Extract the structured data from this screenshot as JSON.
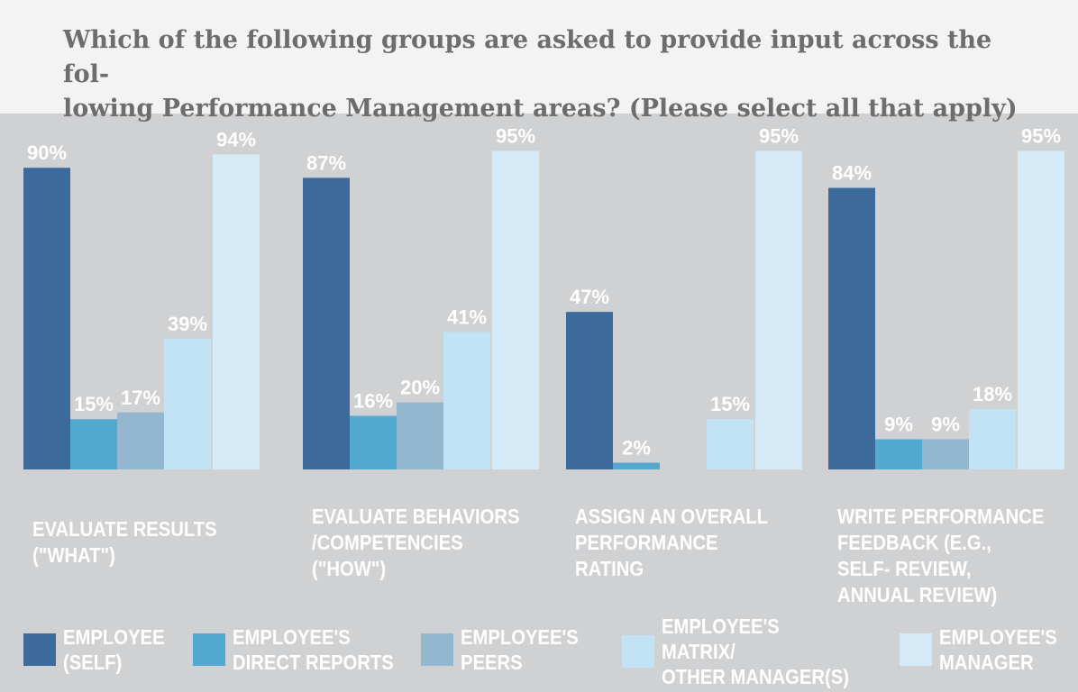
{
  "chart_data": {
    "type": "bar",
    "title": "Which of the following groups are asked to provide input across the fol-lowing Performance Management areas? (Please select all that apply)",
    "categories": [
      "EVALUATE RESULTS (\"WHAT\")",
      "EVALUATE BEHAVIORS /COMPETENCIES (\"HOW\")",
      "ASSIGN AN OVERALL PERFORMANCE RATING",
      "WRITE PERFORMANCE FEEDBACK (E.G., SELF- REVIEW, ANNUAL REVIEW)"
    ],
    "series": [
      {
        "name": "EMPLOYEE (SELF)",
        "color": "#3c6a9a",
        "values": [
          90,
          87,
          47,
          84
        ]
      },
      {
        "name": "EMPLOYEE'S DIRECT REPORTS",
        "color": "#53a9cf",
        "values": [
          15,
          16,
          2,
          9
        ]
      },
      {
        "name": "EMPLOYEE'S PEERS",
        "color": "#93b7ce",
        "values": [
          17,
          20,
          null,
          9
        ]
      },
      {
        "name": "EMPLOYEE'S MATRIX/ OTHER MANAGER(S)",
        "color": "#c2e3f6",
        "values": [
          39,
          41,
          15,
          18
        ]
      },
      {
        "name": "EMPLOYEE'S MANAGER",
        "color": "#d6ebf8",
        "values": [
          94,
          95,
          95,
          95
        ]
      }
    ],
    "value_suffix": "%",
    "legend": "bottom",
    "grid": false,
    "ylim": [
      0,
      100
    ]
  },
  "display": {
    "title": "Which of the following groups are asked to provide input across the fol-\nlowing Performance Management areas? (Please select all that apply)",
    "category_lines": [
      "EVALUATE RESULTS\n(\"WHAT\")",
      "EVALUATE BEHAVIORS\n/COMPETENCIES\n(\"HOW\")",
      "ASSIGN AN OVERALL\nPERFORMANCE\nRATING",
      "WRITE PERFORMANCE\nFEEDBACK (E.G.,\nSELF- REVIEW,\nANNUAL REVIEW)"
    ],
    "legend_lines": [
      "EMPLOYEE\n(SELF)",
      "EMPLOYEE'S\nDIRECT REPORTS",
      "EMPLOYEE'S\nPEERS",
      "EMPLOYEE'S\nMATRIX/\nOTHER MANAGER(S)",
      "EMPLOYEE'S\nMANAGER"
    ]
  },
  "background": "#d0d1d3"
}
